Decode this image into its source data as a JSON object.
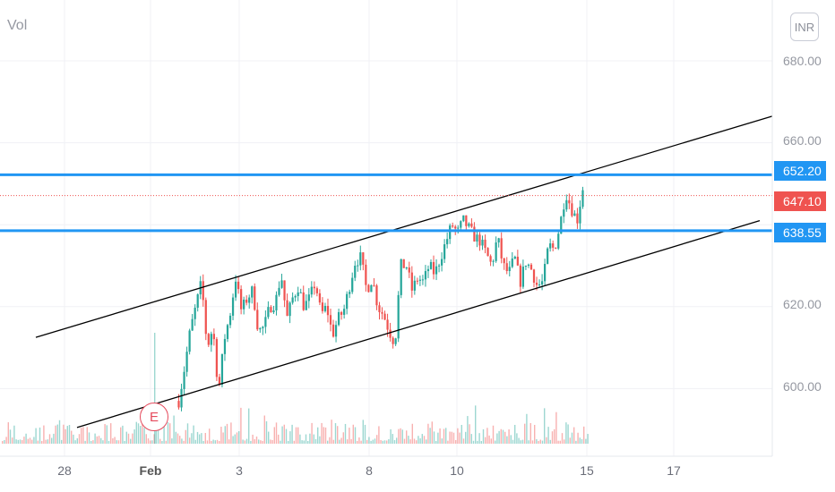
{
  "volume_label": "Vol",
  "currency": "INR",
  "earnings_marker": "E",
  "colors": {
    "up": "#26a69a",
    "down": "#ef5350",
    "hline": "#2196f3",
    "channel": "#000000",
    "last_price": "#ef5350"
  },
  "chart_data": {
    "type": "candlestick",
    "y_ticks": [
      "680.00",
      "660.00",
      "620.00",
      "600.00"
    ],
    "x_ticks": [
      "28",
      "Feb",
      "3",
      "8",
      "10",
      "15",
      "17"
    ],
    "ylim": [
      584,
      690
    ],
    "horizontal_levels": [
      {
        "label": "652.20",
        "value": 652.2,
        "color": "#2196f3"
      },
      {
        "label": "638.55",
        "value": 638.55,
        "color": "#2196f3"
      }
    ],
    "last_price": {
      "label": "647.10",
      "value": 647.1
    },
    "channel_lines": [
      {
        "from_value": 612.5,
        "to_value": 666.5
      },
      {
        "from_value": 590.5,
        "to_value": 641.0
      }
    ],
    "price_path": [
      597,
      605,
      614,
      620,
      626,
      610,
      615,
      599,
      612,
      618,
      627,
      619,
      622,
      624,
      614,
      615,
      620,
      621,
      628,
      617,
      622,
      625,
      620,
      622,
      626,
      618,
      620,
      613,
      617,
      619,
      625,
      631,
      632,
      624,
      627,
      620,
      618,
      614,
      611,
      630,
      630,
      624,
      627,
      626,
      630,
      628,
      632,
      636,
      640,
      638,
      641,
      639,
      637,
      636,
      633,
      630,
      637,
      630,
      628,
      632,
      626,
      631,
      629,
      625,
      626,
      635,
      634,
      640,
      648,
      644,
      641,
      649
    ]
  }
}
